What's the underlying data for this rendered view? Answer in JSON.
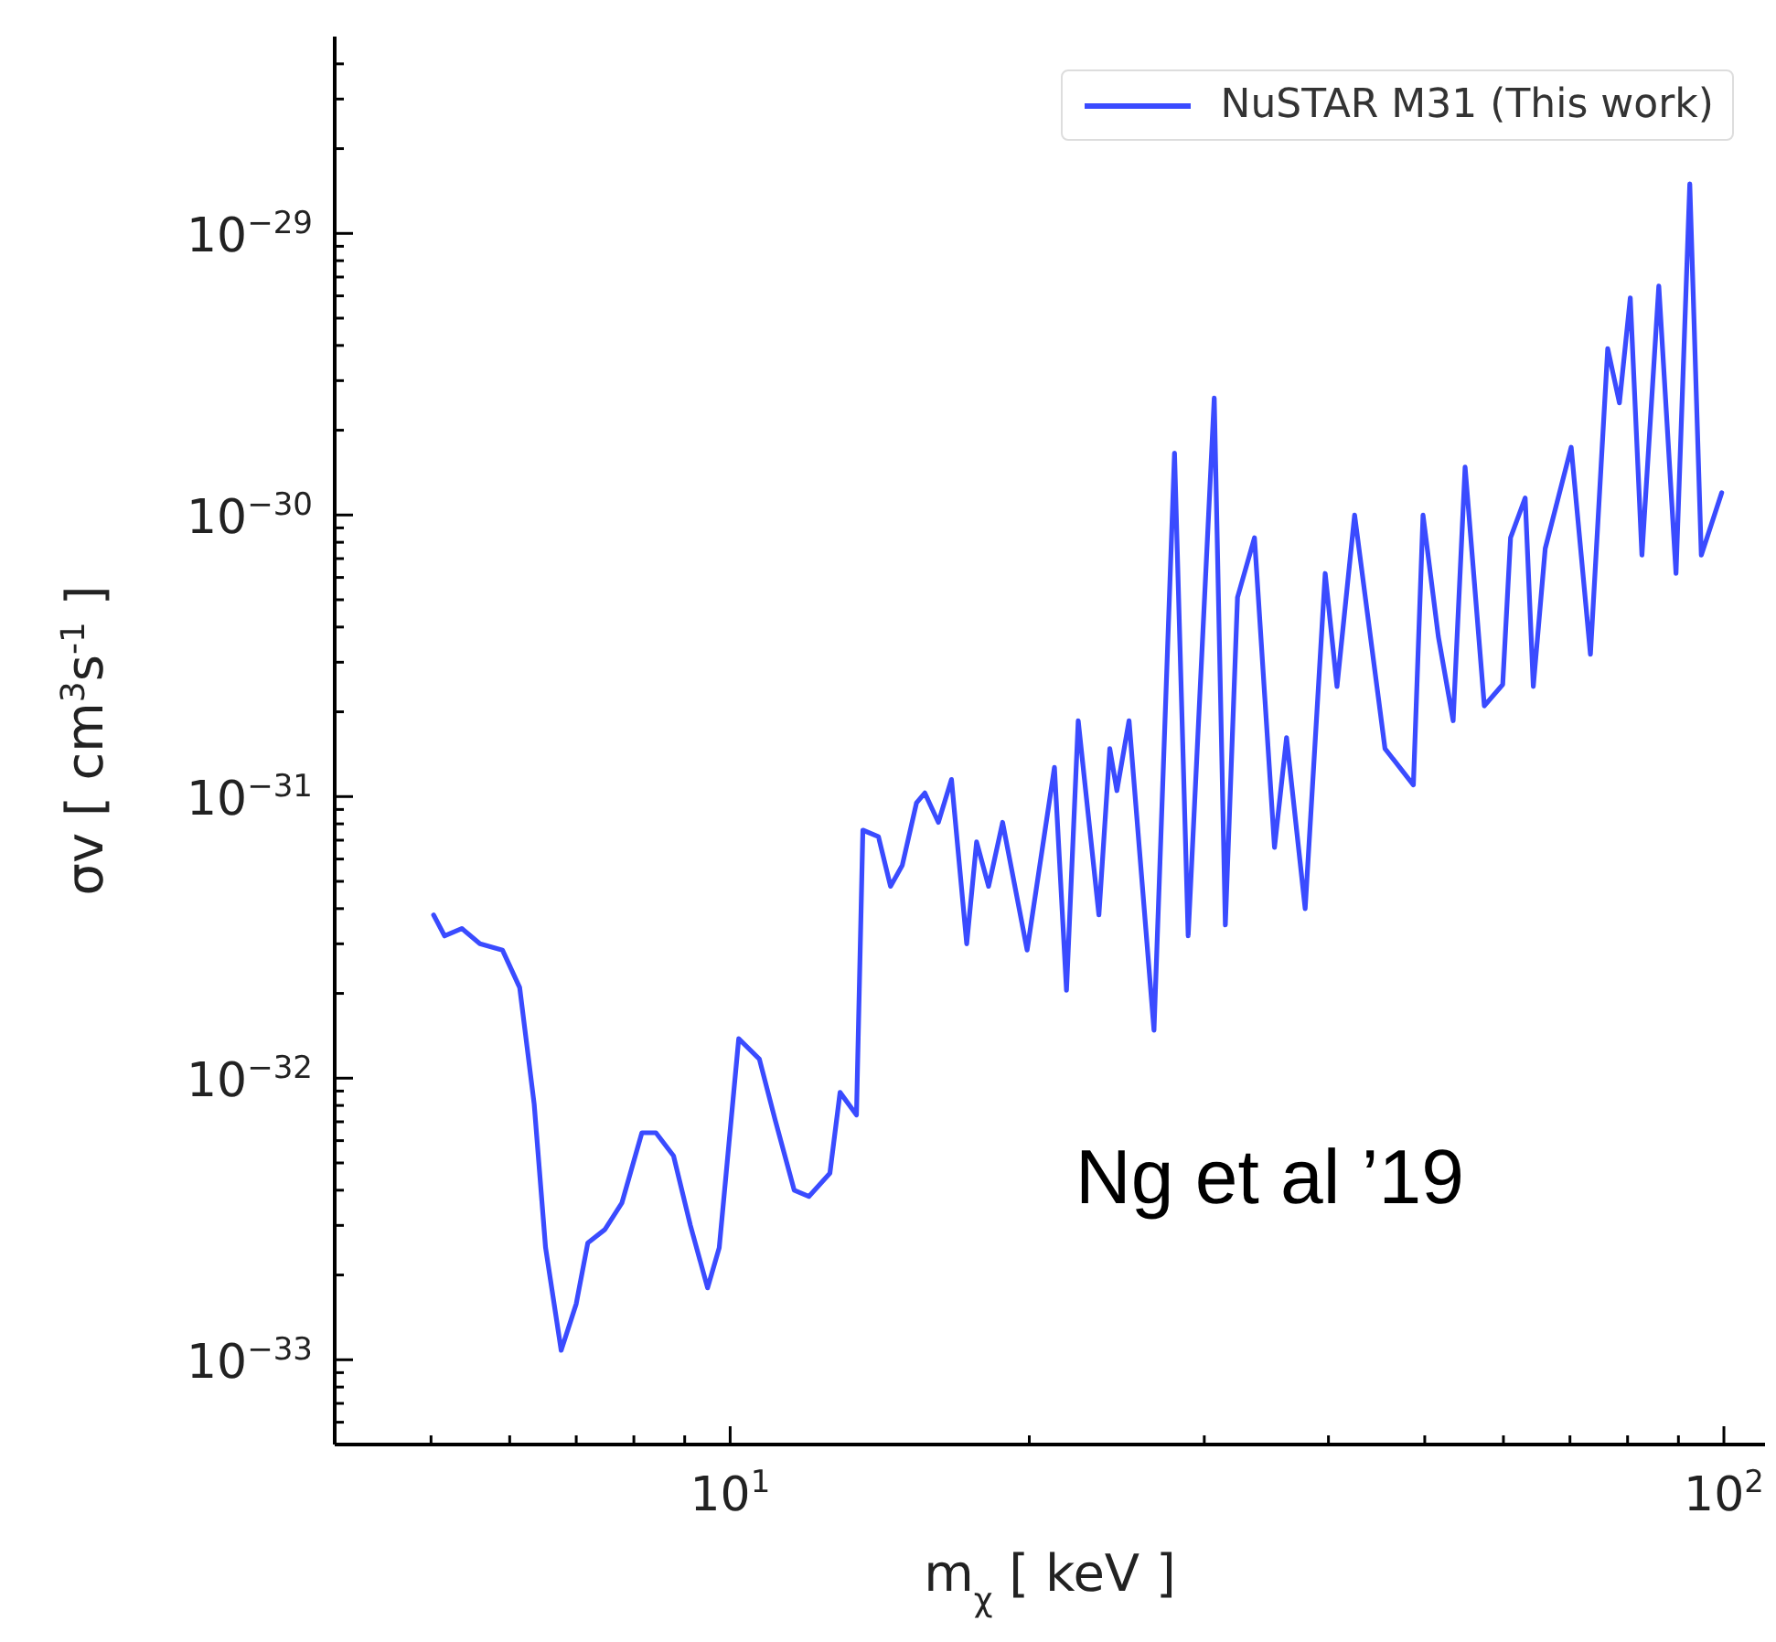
{
  "chart_data": {
    "type": "line",
    "xlabel": "m$_{χ}$ [ keV ]",
    "ylabel": "σv [ cm$^{3}$s$^{-1}$ ]",
    "log": "xy",
    "legend": "top right",
    "xlim": [
      4,
      110
    ],
    "ylim": [
      5e-34,
      5e-29
    ],
    "xticks": [
      {
        "value": 5,
        "label": null
      },
      {
        "value": 6,
        "label": null
      },
      {
        "value": 7,
        "label": null
      },
      {
        "value": 8,
        "label": null
      },
      {
        "value": 9,
        "label": null
      },
      {
        "value": 10,
        "label": "10$^{1}$"
      },
      {
        "value": 20,
        "label": null
      },
      {
        "value": 30,
        "label": null
      },
      {
        "value": 40,
        "label": null
      },
      {
        "value": 50,
        "label": null
      },
      {
        "value": 60,
        "label": null
      },
      {
        "value": 70,
        "label": null
      },
      {
        "value": 80,
        "label": null
      },
      {
        "value": 90,
        "label": null
      },
      {
        "value": 100,
        "label": "10$^{2}$"
      }
    ],
    "yticks": [
      {
        "value": 6e-34,
        "label": null
      },
      {
        "value": 7e-34,
        "label": null
      },
      {
        "value": 8e-34,
        "label": null
      },
      {
        "value": 9e-34,
        "label": null
      },
      {
        "value": 1e-33,
        "label": "10$^{−33}$"
      },
      {
        "value": 2e-33,
        "label": null
      },
      {
        "value": 3e-33,
        "label": null
      },
      {
        "value": 4e-33,
        "label": null
      },
      {
        "value": 5e-33,
        "label": null
      },
      {
        "value": 6e-33,
        "label": null
      },
      {
        "value": 7e-33,
        "label": null
      },
      {
        "value": 8e-33,
        "label": null
      },
      {
        "value": 9e-33,
        "label": null
      },
      {
        "value": 1e-32,
        "label": "10$^{−32}$"
      },
      {
        "value": 2e-32,
        "label": null
      },
      {
        "value": 3e-32,
        "label": null
      },
      {
        "value": 4e-32,
        "label": null
      },
      {
        "value": 5e-32,
        "label": null
      },
      {
        "value": 6e-32,
        "label": null
      },
      {
        "value": 7e-32,
        "label": null
      },
      {
        "value": 8e-32,
        "label": null
      },
      {
        "value": 9e-32,
        "label": null
      },
      {
        "value": 1e-31,
        "label": "10$^{−31}$"
      },
      {
        "value": 2e-31,
        "label": null
      },
      {
        "value": 3e-31,
        "label": null
      },
      {
        "value": 4e-31,
        "label": null
      },
      {
        "value": 5e-31,
        "label": null
      },
      {
        "value": 6e-31,
        "label": null
      },
      {
        "value": 7e-31,
        "label": null
      },
      {
        "value": 8e-31,
        "label": null
      },
      {
        "value": 9e-31,
        "label": null
      },
      {
        "value": 1e-30,
        "label": "10$^{−30}$"
      },
      {
        "value": 2e-30,
        "label": null
      },
      {
        "value": 3e-30,
        "label": null
      },
      {
        "value": 4e-30,
        "label": null
      },
      {
        "value": 5e-30,
        "label": null
      },
      {
        "value": 6e-30,
        "label": null
      },
      {
        "value": 7e-30,
        "label": null
      },
      {
        "value": 8e-30,
        "label": null
      },
      {
        "value": 9e-30,
        "label": null
      },
      {
        "value": 1e-29,
        "label": "10$^{−29}$"
      },
      {
        "value": 2e-29,
        "label": null
      },
      {
        "value": 3e-29,
        "label": null
      },
      {
        "value": 4e-29,
        "label": null
      }
    ],
    "annotations": [
      "Ng et al ’19"
    ],
    "series": [
      {
        "name": "NuSTAR M31 (This work)",
        "color": "#3a4bff",
        "x": [
          5.03,
          5.16,
          5.37,
          5.6,
          5.9,
          6.14,
          6.35,
          6.52,
          6.76,
          7.0,
          7.19,
          7.48,
          7.78,
          8.15,
          8.42,
          8.77,
          9.12,
          9.49,
          9.75,
          10.2,
          10.7,
          11.1,
          11.6,
          12.0,
          12.6,
          12.9,
          13.4,
          13.6,
          14.1,
          14.5,
          14.9,
          15.4,
          15.7,
          16.2,
          16.7,
          17.3,
          17.7,
          18.2,
          18.8,
          19.9,
          21.2,
          21.8,
          22.4,
          23.5,
          24.1,
          24.5,
          25.2,
          26.7,
          28.0,
          28.9,
          30.7,
          31.5,
          32.4,
          33.7,
          35.3,
          36.3,
          37.9,
          39.7,
          40.8,
          42.5,
          45.6,
          48.7,
          49.8,
          51.6,
          53.4,
          54.9,
          57.4,
          59.9,
          61.0,
          63.1,
          64.3,
          66.1,
          70.2,
          73.4,
          76.4,
          78.5,
          80.5,
          82.7,
          86.0,
          89.5,
          92.4,
          94.9,
          99.5
        ],
        "values": [
          3.8e-32,
          3.2e-32,
          3.4e-32,
          3e-32,
          2.85e-32,
          2.1e-32,
          8.1e-33,
          2.5e-33,
          1.08e-33,
          1.58e-33,
          2.6e-33,
          2.9e-33,
          3.6e-33,
          6.4e-33,
          6.4e-33,
          5.3e-33,
          3e-33,
          1.8e-33,
          2.5e-33,
          1.38e-32,
          1.17e-32,
          7.1e-33,
          4e-33,
          3.8e-33,
          4.6e-33,
          8.9e-33,
          7.4e-33,
          7.6e-32,
          7.2e-32,
          4.8e-32,
          5.7e-32,
          9.5e-32,
          1.03e-31,
          8.1e-32,
          1.15e-31,
          3e-32,
          6.9e-32,
          4.8e-32,
          8.1e-32,
          2.85e-32,
          1.27e-31,
          2.05e-32,
          1.86e-31,
          3.8e-32,
          1.48e-31,
          1.05e-31,
          1.86e-31,
          1.48e-32,
          1.66e-30,
          3.2e-32,
          2.6e-30,
          3.5e-32,
          5.1e-31,
          8.3e-31,
          6.6e-32,
          1.62e-31,
          4e-32,
          6.2e-31,
          2.46e-31,
          1e-30,
          1.48e-31,
          1.1e-31,
          1e-30,
          3.7e-31,
          1.86e-31,
          1.48e-30,
          2.1e-31,
          2.5e-31,
          8.3e-31,
          1.15e-30,
          2.46e-31,
          7.6e-31,
          1.74e-30,
          3.2e-31,
          3.9e-30,
          2.5e-30,
          5.9e-30,
          7.2e-31,
          6.5e-30,
          6.2e-31,
          1.5e-29,
          7.2e-31,
          1.2e-30
        ]
      }
    ]
  }
}
